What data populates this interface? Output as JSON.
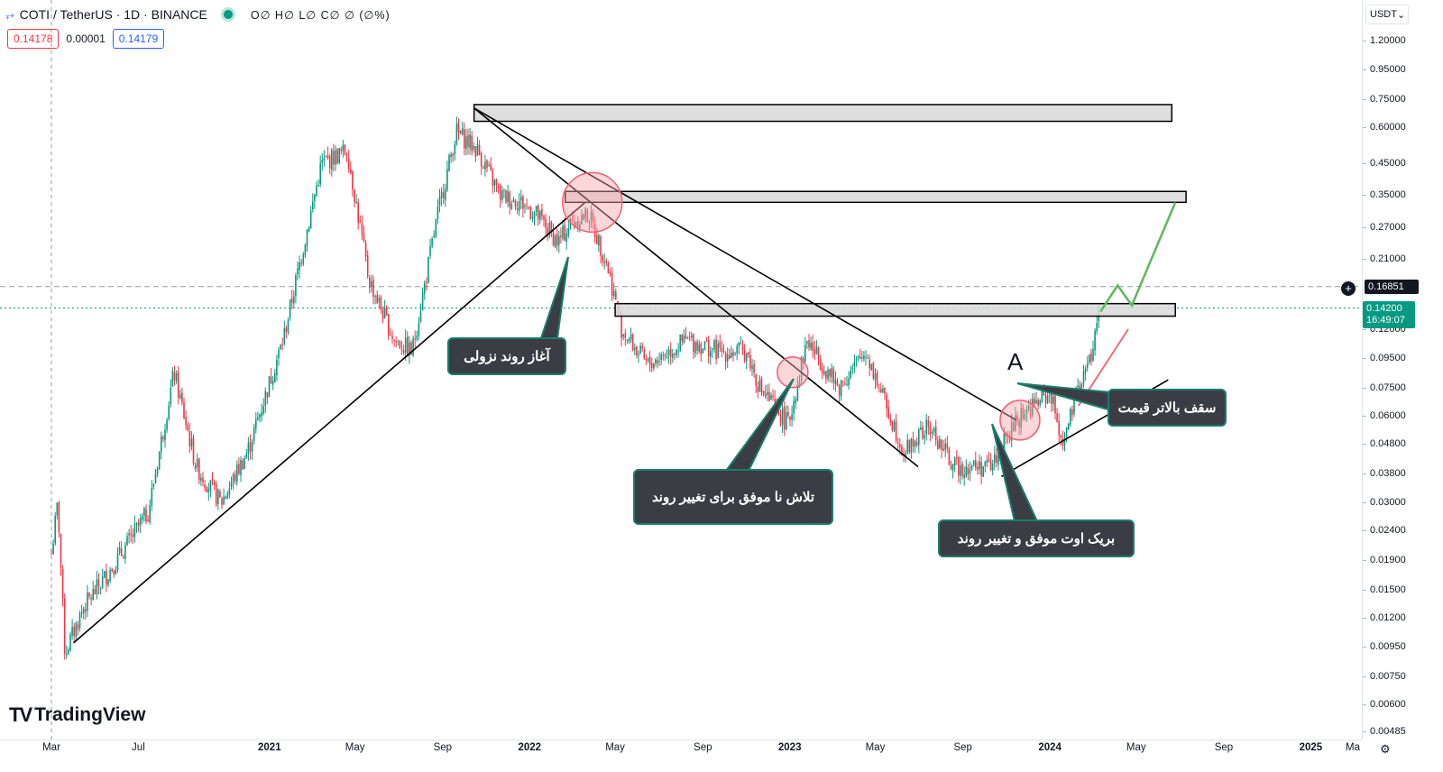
{
  "header": {
    "symbol": "COTI / TetherUS · 1D · BINANCE",
    "ohlc": "O∅ H∅ L∅ C∅ ∅ (∅%)",
    "bid": "0.14178",
    "spread": "0.00001",
    "ask": "0.14179",
    "currency": "USDT"
  },
  "logo": {
    "mark": "TV",
    "text": "TradingView"
  },
  "price_labels": {
    "crosshair": "0.16851",
    "last_price": "0.14200",
    "countdown": "16:49:07"
  },
  "colors": {
    "up": "#089981",
    "down": "#f23645",
    "trendline": "#000000",
    "zone_fill": "#d9d9d9",
    "projection": "#5cb85c",
    "circle": "#f8a5a8",
    "callout_bg": "#3a3d44",
    "callout_border": "#1c7c6b"
  },
  "annotations": {
    "callout_start": "آغاز روند نزولی",
    "callout_fail": "تلاش نا موفق برای تغییر روند",
    "callout_breakout": "بریک اوت موفق و تغییر روند",
    "callout_ceiling": "سقف بالاتر قیمت",
    "label_a": "A"
  },
  "chart_data": {
    "type": "candlestick",
    "scale": "log",
    "y_axis_labels": [
      "1.20000",
      "0.95000",
      "0.75000",
      "0.60000",
      "0.45000",
      "0.35000",
      "0.27000",
      "0.21000",
      "0.12000",
      "0.09500",
      "0.07500",
      "0.06000",
      "0.04800",
      "0.03800",
      "0.03000",
      "0.02400",
      "0.01900",
      "0.01500",
      "0.01200",
      "0.00950",
      "0.00750",
      "0.00600",
      "0.00485"
    ],
    "x_axis_labels": [
      {
        "label": "Mar",
        "bold": false
      },
      {
        "label": "Jul",
        "bold": false
      },
      {
        "label": "2021",
        "bold": true
      },
      {
        "label": "May",
        "bold": false
      },
      {
        "label": "Sep",
        "bold": false
      },
      {
        "label": "2022",
        "bold": true
      },
      {
        "label": "May",
        "bold": false
      },
      {
        "label": "Sep",
        "bold": false
      },
      {
        "label": "2023",
        "bold": true
      },
      {
        "label": "May",
        "bold": false
      },
      {
        "label": "Sep",
        "bold": false
      },
      {
        "label": "2024",
        "bold": true
      },
      {
        "label": "May",
        "bold": false
      },
      {
        "label": "Sep",
        "bold": false
      },
      {
        "label": "2025",
        "bold": true
      },
      {
        "label": "Ma",
        "bold": false
      }
    ],
    "price_path": [
      [
        "2020-03-01",
        0.02
      ],
      [
        "2020-03-10",
        0.03
      ],
      [
        "2020-03-20",
        0.009
      ],
      [
        "2020-04-15",
        0.013
      ],
      [
        "2020-06-01",
        0.019
      ],
      [
        "2020-07-15",
        0.028
      ],
      [
        "2020-08-20",
        0.085
      ],
      [
        "2020-09-20",
        0.04
      ],
      [
        "2020-10-25",
        0.03
      ],
      [
        "2020-12-01",
        0.045
      ],
      [
        "2021-01-20",
        0.11
      ],
      [
        "2021-03-15",
        0.45
      ],
      [
        "2021-04-20",
        0.5
      ],
      [
        "2021-05-20",
        0.18
      ],
      [
        "2021-06-25",
        0.11
      ],
      [
        "2021-07-20",
        0.1
      ],
      [
        "2021-08-25",
        0.3
      ],
      [
        "2021-09-20",
        0.58
      ],
      [
        "2021-10-20",
        0.5
      ],
      [
        "2021-11-20",
        0.35
      ],
      [
        "2021-12-20",
        0.33
      ],
      [
        "2022-01-10",
        0.3
      ],
      [
        "2022-02-10",
        0.24
      ],
      [
        "2022-02-28",
        0.28
      ],
      [
        "2022-03-25",
        0.3
      ],
      [
        "2022-04-20",
        0.2
      ],
      [
        "2022-05-10",
        0.12
      ],
      [
        "2022-06-15",
        0.09
      ],
      [
        "2022-08-10",
        0.11
      ],
      [
        "2022-09-25",
        0.1
      ],
      [
        "2022-11-01",
        0.1
      ],
      [
        "2022-11-20",
        0.075
      ],
      [
        "2022-12-30",
        0.056
      ],
      [
        "2023-01-25",
        0.11
      ],
      [
        "2023-03-10",
        0.075
      ],
      [
        "2023-04-18",
        0.1
      ],
      [
        "2023-06-10",
        0.045
      ],
      [
        "2023-07-15",
        0.055
      ],
      [
        "2023-08-20",
        0.04
      ],
      [
        "2023-10-10",
        0.04
      ],
      [
        "2023-11-20",
        0.06
      ],
      [
        "2024-01-01",
        0.072
      ],
      [
        "2024-01-20",
        0.048
      ],
      [
        "2024-02-10",
        0.075
      ],
      [
        "2024-03-01",
        0.1
      ],
      [
        "2024-03-10",
        0.142
      ]
    ],
    "shapes": {
      "zones": [
        {
          "from": "2021-10-15",
          "to": "2024-06-20",
          "low": 0.63,
          "high": 0.72
        },
        {
          "from": "2022-02-20",
          "to": "2024-07-10",
          "low": 0.33,
          "high": 0.36
        },
        {
          "from": "2022-05-01",
          "to": "2024-06-25",
          "low": 0.133,
          "high": 0.147
        }
      ],
      "trendlines": [
        {
          "from": [
            "2020-04-01",
            0.0098
          ],
          "to": [
            "2022-03-20",
            0.33
          ]
        },
        {
          "from": [
            "2021-10-15",
            0.7
          ],
          "to": [
            "2023-06-30",
            0.04
          ]
        },
        {
          "from": [
            "2021-10-15",
            0.7
          ],
          "to": [
            "2023-11-15",
            0.058
          ]
        },
        {
          "from": [
            "2023-10-25",
            0.037
          ],
          "to": [
            "2024-06-15",
            0.08
          ]
        }
      ],
      "red_rising_line": {
        "from": [
          "2024-02-10",
          0.065
        ],
        "to": [
          "2024-04-20",
          0.12
        ]
      },
      "projection": [
        [
          "2024-03-12",
          0.138
        ],
        [
          "2024-04-05",
          0.17
        ],
        [
          "2024-04-25",
          0.145
        ],
        [
          "2024-06-25",
          0.33
        ]
      ],
      "circles": [
        {
          "at": [
            "2022-03-30",
            0.33
          ],
          "r": 33
        },
        {
          "at": [
            "2023-01-05",
            0.085
          ],
          "r": 17
        },
        {
          "at": [
            "2023-11-20",
            0.058
          ],
          "r": 22
        }
      ],
      "horizontal_lines": [
        {
          "price": 0.16851,
          "style": "dashed",
          "color": "#9598a1"
        },
        {
          "price": 0.142,
          "style": "dotted",
          "color": "#089981"
        }
      ],
      "vertical_line": {
        "date": "2020-03-01",
        "style": "dashed"
      }
    }
  }
}
